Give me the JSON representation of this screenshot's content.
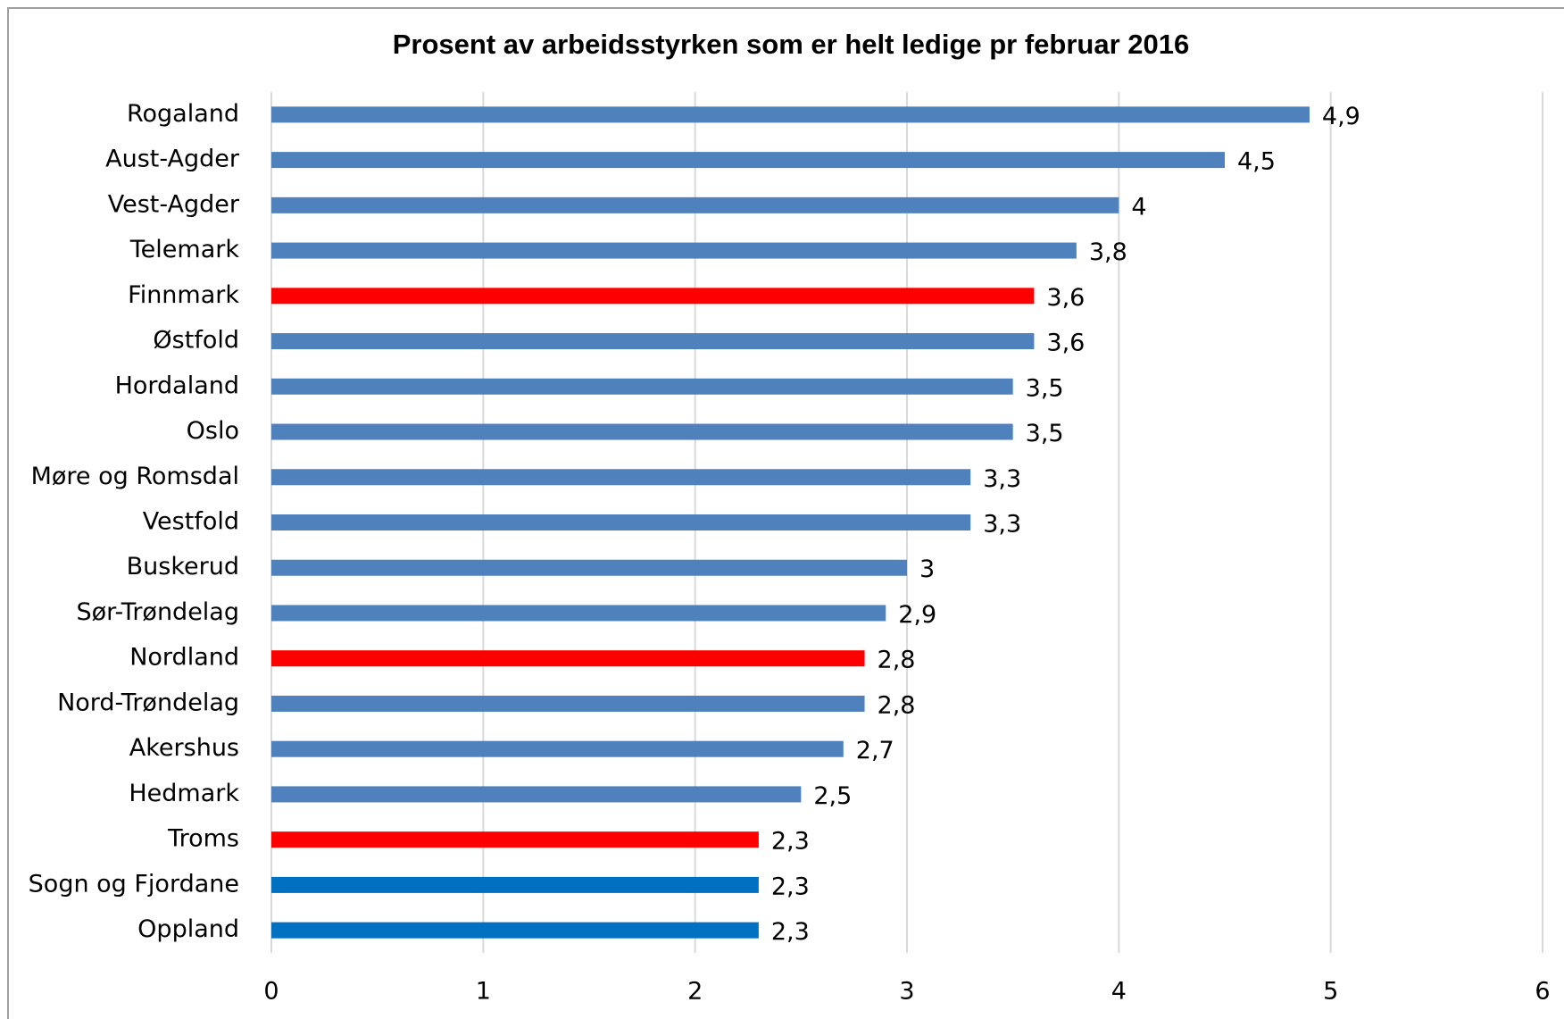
{
  "chart_data": {
    "type": "bar",
    "orientation": "horizontal",
    "title": "Prosent av arbeidsstyrken som er helt ledige pr februar 2016",
    "categories": [
      "Rogaland",
      "Aust-Agder",
      "Vest-Agder",
      "Telemark",
      "Finnmark",
      "Østfold",
      "Hordaland",
      "Oslo",
      "Møre og Romsdal",
      "Vestfold",
      "Buskerud",
      "Sør-Trøndelag",
      "Nordland",
      "Nord-Trøndelag",
      "Akershus",
      "Hedmark",
      "Troms",
      "Sogn og Fjordane",
      "Oppland"
    ],
    "values": [
      4.9,
      4.5,
      4,
      3.8,
      3.6,
      3.6,
      3.5,
      3.5,
      3.3,
      3.3,
      3,
      2.9,
      2.8,
      2.8,
      2.7,
      2.5,
      2.3,
      2.3,
      2.3
    ],
    "value_labels": [
      "4,9",
      "4,5",
      "4",
      "3,8",
      "3,6",
      "3,6",
      "3,5",
      "3,5",
      "3,3",
      "3,3",
      "3",
      "2,9",
      "2,8",
      "2,8",
      "2,7",
      "2,5",
      "2,3",
      "2,3",
      "2,3"
    ],
    "colors": [
      "#4f81bd",
      "#4f81bd",
      "#4f81bd",
      "#4f81bd",
      "#ff0000",
      "#4f81bd",
      "#4f81bd",
      "#4f81bd",
      "#4f81bd",
      "#4f81bd",
      "#4f81bd",
      "#4f81bd",
      "#ff0000",
      "#4f81bd",
      "#4f81bd",
      "#4f81bd",
      "#ff0000",
      "#0070c0",
      "#0070c0"
    ],
    "xlim": [
      0,
      6
    ],
    "xticks": [
      0,
      1,
      2,
      3,
      4,
      5,
      6
    ],
    "grid": true
  }
}
